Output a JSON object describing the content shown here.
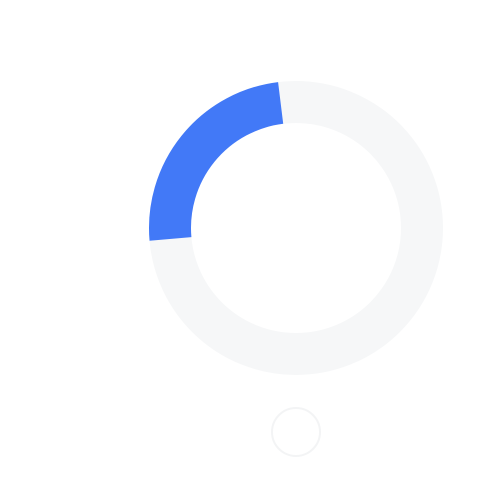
{
  "colors": {
    "background": "#ffffff",
    "track": "#f6f7f8",
    "arc": "#4279f7",
    "knob_fill": "#ffffff",
    "knob_stroke": "#f3f4f5"
  },
  "spinner": {
    "arc_fraction": 0.2,
    "arc_start_deg": -95,
    "icon": "loading-spinner-icon"
  },
  "knob": {
    "icon": "knob-circle-icon"
  }
}
